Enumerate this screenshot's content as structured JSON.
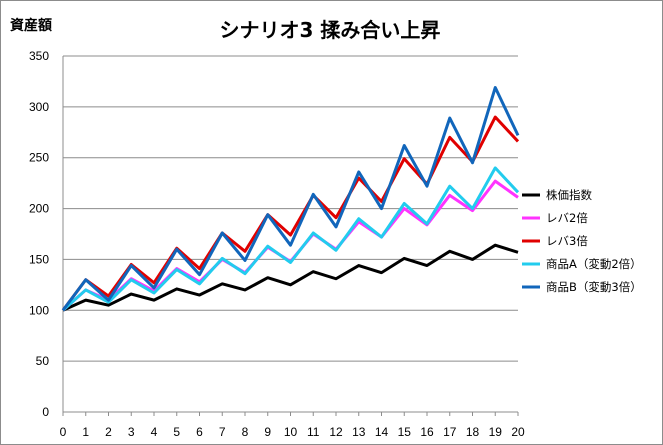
{
  "chart_data": {
    "type": "line",
    "title": "シナリオ3 揉み合い上昇",
    "unit_label": "資産額",
    "x": [
      0,
      1,
      2,
      3,
      4,
      5,
      6,
      7,
      8,
      9,
      10,
      11,
      12,
      13,
      14,
      15,
      16,
      17,
      18,
      19,
      20
    ],
    "ylim": [
      0,
      350
    ],
    "yticks": [
      0,
      50,
      100,
      150,
      200,
      250,
      300,
      350
    ],
    "grid": true,
    "legend_position": "right",
    "series": [
      {
        "name": "株価指数",
        "color": "#000000",
        "values": [
          100,
          110,
          105,
          116,
          110,
          121,
          115,
          126,
          120,
          132,
          125,
          138,
          131,
          144,
          137,
          151,
          144,
          158,
          150,
          164,
          157
        ]
      },
      {
        "name": "レバ2倍",
        "color": "#ff33ff",
        "values": [
          100,
          120,
          110,
          131,
          119,
          141,
          128,
          150,
          137,
          162,
          148,
          175,
          160,
          187,
          172,
          200,
          184,
          213,
          198,
          227,
          211
        ]
      },
      {
        "name": "レバ3倍",
        "color": "#e00000",
        "values": [
          100,
          130,
          114,
          145,
          127,
          161,
          141,
          176,
          158,
          194,
          174,
          213,
          191,
          230,
          207,
          249,
          224,
          270,
          246,
          290,
          266
        ]
      },
      {
        "name": "商品A（変動2倍）",
        "color": "#22ccee",
        "values": [
          100,
          120,
          108,
          130,
          117,
          140,
          126,
          151,
          136,
          163,
          147,
          176,
          159,
          190,
          172,
          205,
          185,
          222,
          200,
          240,
          216
        ]
      },
      {
        "name": "商品B（変動3倍）",
        "color": "#1166bb",
        "values": [
          100,
          130,
          110,
          144,
          122,
          160,
          135,
          176,
          149,
          194,
          164,
          214,
          182,
          236,
          200,
          262,
          222,
          289,
          245,
          319,
          272
        ]
      }
    ]
  }
}
